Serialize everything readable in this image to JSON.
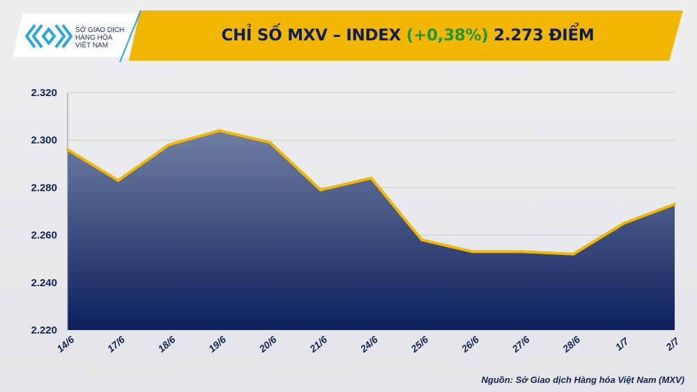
{
  "header": {
    "title_main": "CHỈ SỐ MXV – INDEX ",
    "title_change": "(+0,38%)",
    "title_value": " 2.273 ĐIỂM",
    "banner_color": "#f2b705",
    "change_color": "#1c9a3a"
  },
  "logo": {
    "line1": "SỞ GIAO DỊCH",
    "line2": "HÀNG HÓA",
    "line3": "VIỆT NAM"
  },
  "source": "Nguồn: Sở Giao dịch Hàng hóa Việt Nam (MXV)",
  "chart_data": {
    "type": "area",
    "title": "CHỈ SỐ MXV – INDEX (+0,38%) 2.273 ĐIỂM",
    "categories": [
      "14/6",
      "17/6",
      "18/6",
      "19/6",
      "20/6",
      "21/6",
      "24/6",
      "25/6",
      "26/6",
      "27/6",
      "28/6",
      "1/7",
      "2/7"
    ],
    "values": [
      2296,
      2283,
      2298,
      2304,
      2299,
      2279,
      2284,
      2258,
      2253,
      2253,
      2252,
      2265,
      2273
    ],
    "ylim": [
      2220,
      2320
    ],
    "yticks": [
      2220,
      2240,
      2260,
      2280,
      2300,
      2320
    ],
    "ytick_labels": [
      "2.220",
      "2.240",
      "2.260",
      "2.280",
      "2.300",
      "2.320"
    ],
    "grid": true,
    "line_color": "#f2b705",
    "fill_top_color": "#6f7fa3",
    "fill_bottom_color": "#0d1f5c"
  }
}
